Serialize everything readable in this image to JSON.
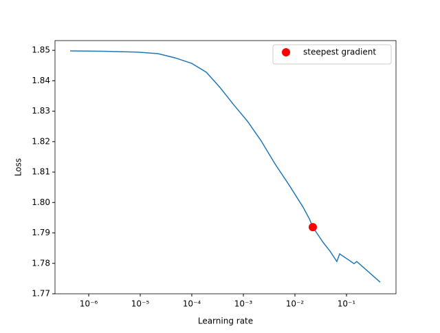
{
  "chart_data": {
    "type": "line",
    "xlabel": "Learning rate",
    "ylabel": "Loss",
    "xscale": "log",
    "xlim": [
      2.22e-07,
      0.912
    ],
    "ylim": [
      1.77,
      1.8532
    ],
    "xticks": [
      {
        "value": 1e-06,
        "label": "10⁻⁶"
      },
      {
        "value": 1e-05,
        "label": "10⁻⁵"
      },
      {
        "value": 0.0001,
        "label": "10⁻⁴"
      },
      {
        "value": 0.001,
        "label": "10⁻³"
      },
      {
        "value": 0.01,
        "label": "10⁻²"
      },
      {
        "value": 0.1,
        "label": "10⁻¹"
      }
    ],
    "yticks": [
      1.77,
      1.78,
      1.79,
      {
        "value": 1.8,
        "label": "1.80"
      },
      1.81,
      1.82,
      1.83,
      1.84,
      1.85
    ],
    "series": [
      {
        "color": "#1f77b4",
        "x": [
          4.37e-07,
          1.91e-06,
          8.85e-06,
          2.22e-05,
          4.79e-05,
          0.0001,
          0.000191,
          0.000352,
          0.00065,
          0.0012,
          0.00222,
          0.0041,
          0.00759,
          0.0141,
          0.0191,
          0.0222,
          0.0352,
          0.0479,
          0.065,
          0.0736,
          0.0885,
          0.14,
          0.158,
          0.222,
          0.352,
          0.45
        ],
        "values": [
          1.8498,
          1.8497,
          1.8494,
          1.8489,
          1.8475,
          1.8457,
          1.8428,
          1.8378,
          1.8321,
          1.8267,
          1.8202,
          1.8127,
          1.8059,
          1.7987,
          1.7946,
          1.7919,
          1.7869,
          1.784,
          1.7806,
          1.7831,
          1.7822,
          1.7799,
          1.7806,
          1.7784,
          1.7754,
          1.7738
        ]
      },
      {
        "name": "steepest gradient",
        "color": "red",
        "marker": "point",
        "x": [
          0.0222
        ],
        "values": [
          1.7919
        ]
      }
    ],
    "legend": "upper right"
  }
}
